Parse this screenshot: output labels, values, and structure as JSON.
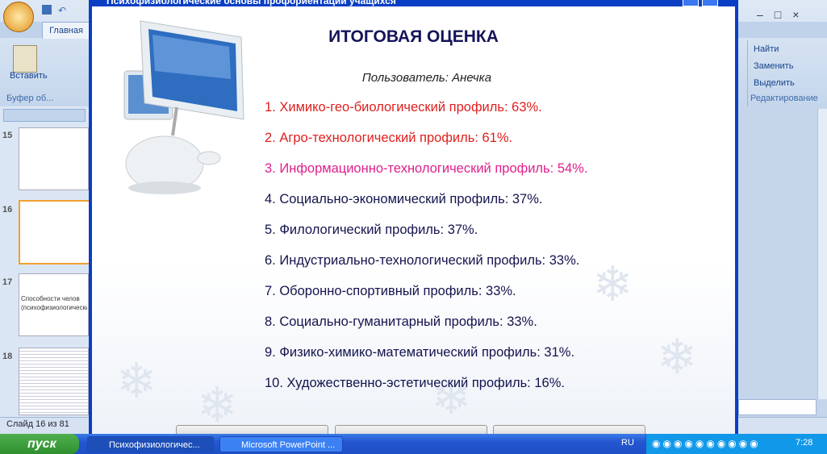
{
  "dialog": {
    "title": "Психофизиологические основы профориентации учащихся",
    "heading": "ИТОГОВАЯ ОЦЕНКА",
    "user": "Пользователь: Анечка",
    "items": [
      {
        "text": "1. Химико-гео-биологический профиль: 63%.",
        "color": "#e01e1e"
      },
      {
        "text": "2. Агро-технологический профиль: 61%.",
        "color": "#e01e1e"
      },
      {
        "text": "3. Информационно-технологический профиль: 54%.",
        "color": "#e0208c"
      },
      {
        "text": "4. Социально-экономический профиль: 37%.",
        "color": "#14144e"
      },
      {
        "text": "5. Филологический профиль: 37%.",
        "color": "#14144e"
      },
      {
        "text": "6. Индустриально-технологический профиль: 33%.",
        "color": "#14144e"
      },
      {
        "text": "7. Оборонно-спортивный профиль: 33%.",
        "color": "#14144e"
      },
      {
        "text": "8. Социально-гуманитарный профиль: 33%.",
        "color": "#14144e"
      },
      {
        "text": "9. Физико-химико-математический профиль: 31%.",
        "color": "#14144e"
      },
      {
        "text": "10. Художественно-эстетический профиль: 16%.",
        "color": "#14144e"
      }
    ]
  },
  "ribbon": {
    "tab_home": "Главная",
    "paste": "Вставить",
    "clipboard_group": "Буфер об...",
    "find": "Найти",
    "replace": "Заменить",
    "select": "Выделить",
    "editing_group": "Редактирование"
  },
  "slides": [
    {
      "number": "15"
    },
    {
      "number": "16"
    },
    {
      "number": "17",
      "text": "Способности челов",
      "subtext": "(психофизиологический"
    },
    {
      "number": "18"
    }
  ],
  "status": {
    "slide_counter": "Слайд 16 из 81"
  },
  "taskbar": {
    "start": "пуск",
    "tasks": [
      "Психофизиологичес...",
      "Microsoft PowerPoint ..."
    ],
    "language": "RU",
    "clock": "7:28"
  }
}
